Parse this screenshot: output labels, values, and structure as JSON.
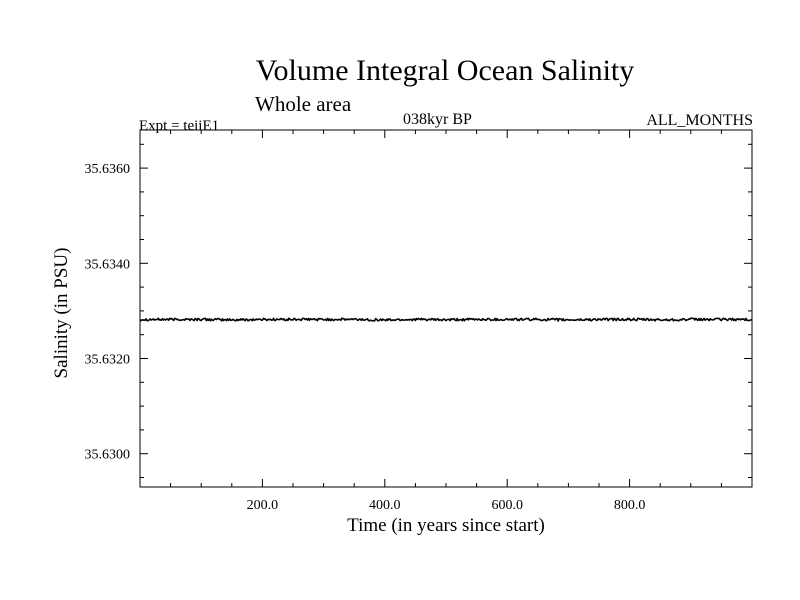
{
  "chart_data": {
    "type": "line",
    "title": "Volume Integral Ocean Salinity",
    "subtitle": "Whole area",
    "annotations": {
      "experiment": "Expt = teiiE1",
      "period": "038kyr BP",
      "months": "ALL_MONTHS"
    },
    "xlabel": "Time (in years since start)",
    "ylabel": "Salinity (in PSU)",
    "xlim": [
      0,
      1000
    ],
    "ylim": [
      35.6293,
      35.6368
    ],
    "xticks": [
      200,
      400,
      600,
      800
    ],
    "xtick_labels": [
      "200.0",
      "400.0",
      "600.0",
      "800.0"
    ],
    "yticks": [
      35.63,
      35.632,
      35.634,
      35.636
    ],
    "ytick_labels": [
      "35.6300",
      "35.6320",
      "35.6340",
      "35.6360"
    ],
    "grid": false,
    "series": [
      {
        "x": [
          0,
          50,
          100,
          150,
          200,
          250,
          300,
          350,
          400,
          450,
          500,
          550,
          600,
          650,
          700,
          750,
          800,
          850,
          900,
          950,
          1000
        ],
        "values": [
          35.63282,
          35.63282,
          35.63282,
          35.63281,
          35.63282,
          35.63282,
          35.63282,
          35.63282,
          35.63281,
          35.63282,
          35.63281,
          35.63282,
          35.63282,
          35.63282,
          35.63281,
          35.63282,
          35.63282,
          35.63281,
          35.63282,
          35.63282,
          35.63282
        ]
      }
    ],
    "color": "#000000"
  }
}
